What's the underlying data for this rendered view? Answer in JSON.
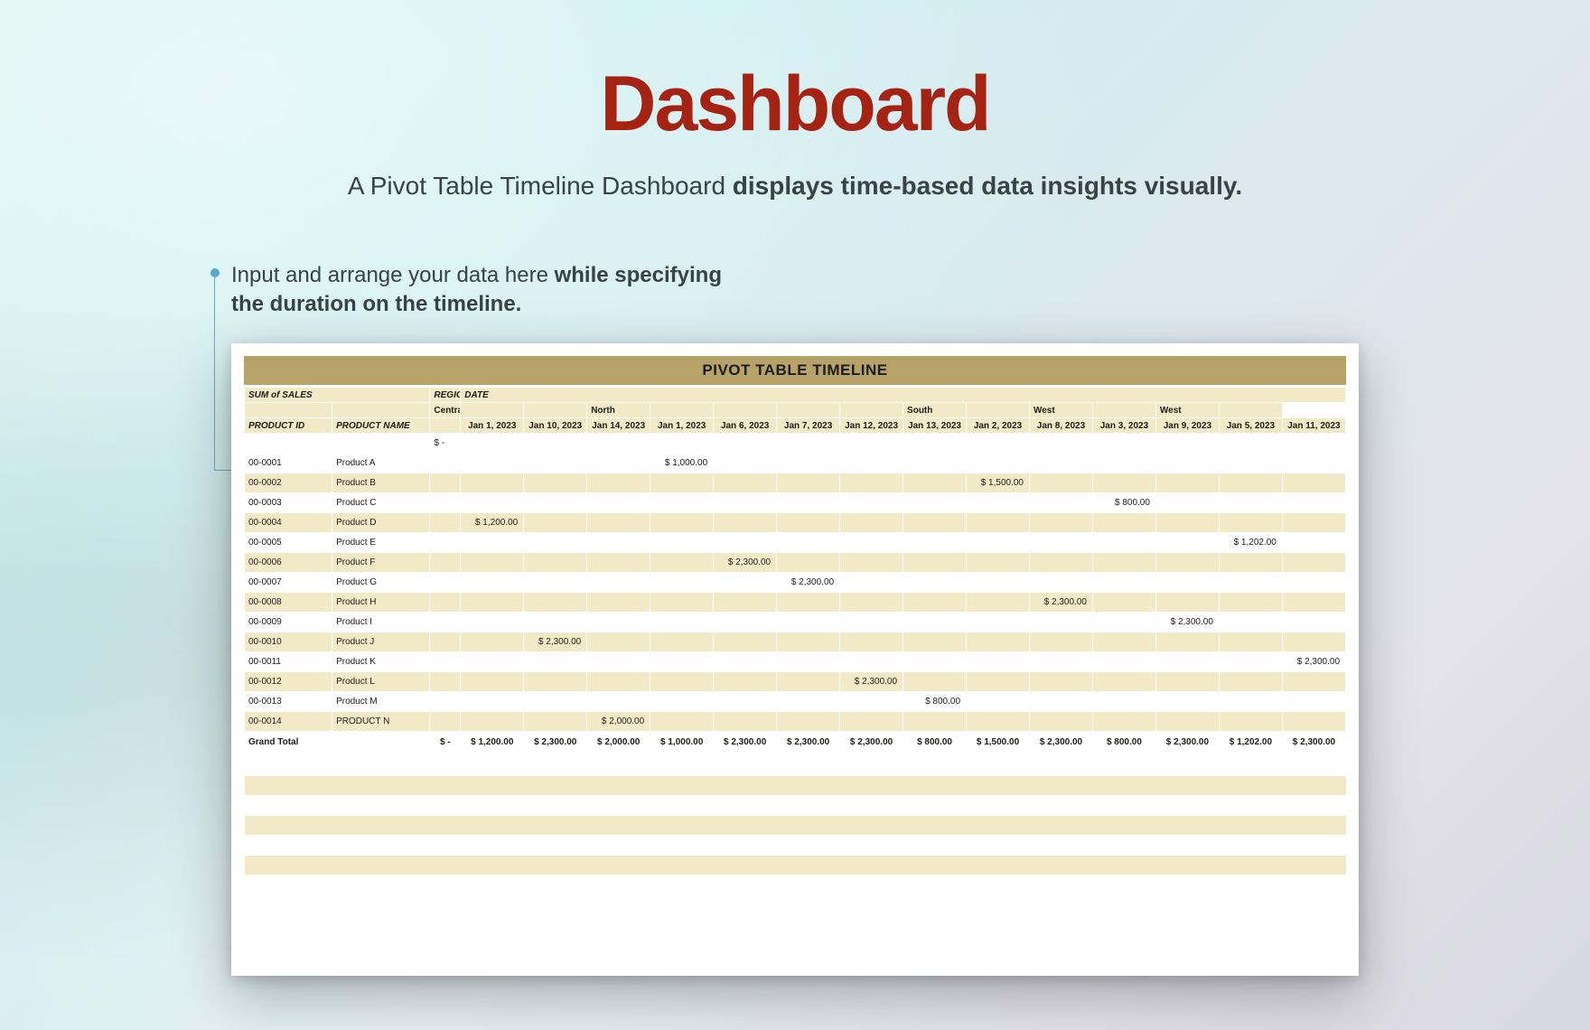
{
  "title": "Dashboard",
  "subtitle_prefix": "A Pivot Table Timeline Dashboard ",
  "subtitle_bold": "displays time-based data insights visually.",
  "callout_prefix": "Input and arrange your data here ",
  "callout_bold": "while specifying the duration on the timeline.",
  "banner": "PIVOT TABLE TIMELINE",
  "labels": {
    "sum_of_sales": "SUM of SALES",
    "region": "REGION",
    "date": "DATE",
    "product_id": "PRODUCT ID",
    "product_name": "PRODUCT NAME",
    "grand_total": "Grand Total"
  },
  "colors": {
    "title": "#a52312",
    "banner_bg": "#b7a36a",
    "header_bg": "#f2e9c6",
    "header_border": "#d9cfa3",
    "alt_row": "#f2e9c6",
    "text": "#1c1c1c"
  },
  "regions": [
    {
      "name": "Central",
      "span": 3
    },
    {
      "name": "North",
      "span": 5
    },
    {
      "name": "South",
      "span": 2
    },
    {
      "name": "West",
      "span": 2
    },
    {
      "name": "West",
      "span": 2
    }
  ],
  "date_cols": [
    "Jan 1, 2023",
    "Jan 10, 2023",
    "Jan 14, 2023",
    "Jan 1, 2023",
    "Jan 6, 2023",
    "Jan 7, 2023",
    "Jan 12, 2023",
    "Jan 13, 2023",
    "Jan 2, 2023",
    "Jan 8, 2023",
    "Jan 3, 2023",
    "Jan 9, 2023",
    "Jan 5, 2023",
    "Jan 11, 2023"
  ],
  "placeholder_dash": "$       -",
  "rows": [
    {
      "id": "00-0001",
      "name": "Product A",
      "vals": [
        "",
        "",
        "",
        "$   1,000.00",
        "",
        "",
        "",
        "",
        "",
        "",
        "",
        "",
        "",
        ""
      ]
    },
    {
      "id": "00-0002",
      "name": "Product B",
      "vals": [
        "",
        "",
        "",
        "",
        "",
        "",
        "",
        "",
        "$   1,500.00",
        "",
        "",
        "",
        "",
        ""
      ]
    },
    {
      "id": "00-0003",
      "name": "Product C",
      "vals": [
        "",
        "",
        "",
        "",
        "",
        "",
        "",
        "",
        "",
        "",
        "$    800.00",
        "",
        "",
        ""
      ]
    },
    {
      "id": "00-0004",
      "name": "Product D",
      "vals": [
        "$   1,200.00",
        "",
        "",
        "",
        "",
        "",
        "",
        "",
        "",
        "",
        "",
        "",
        "",
        ""
      ]
    },
    {
      "id": "00-0005",
      "name": "Product E",
      "vals": [
        "",
        "",
        "",
        "",
        "",
        "",
        "",
        "",
        "",
        "",
        "",
        "",
        "$   1,202.00",
        ""
      ]
    },
    {
      "id": "00-0006",
      "name": "Product F",
      "vals": [
        "",
        "",
        "",
        "",
        "$  2,300.00",
        "",
        "",
        "",
        "",
        "",
        "",
        "",
        "",
        ""
      ]
    },
    {
      "id": "00-0007",
      "name": "Product G",
      "vals": [
        "",
        "",
        "",
        "",
        "",
        "$  2,300.00",
        "",
        "",
        "",
        "",
        "",
        "",
        "",
        ""
      ]
    },
    {
      "id": "00-0008",
      "name": "Product H",
      "vals": [
        "",
        "",
        "",
        "",
        "",
        "",
        "",
        "",
        "",
        "$  2,300.00",
        "",
        "",
        "",
        ""
      ]
    },
    {
      "id": "00-0009",
      "name": "Product I",
      "vals": [
        "",
        "",
        "",
        "",
        "",
        "",
        "",
        "",
        "",
        "",
        "",
        "$  2,300.00",
        "",
        ""
      ]
    },
    {
      "id": "00-0010",
      "name": "Product J",
      "vals": [
        "",
        "$  2,300.00",
        "",
        "",
        "",
        "",
        "",
        "",
        "",
        "",
        "",
        "",
        "",
        ""
      ]
    },
    {
      "id": "00-0011",
      "name": "Product K",
      "vals": [
        "",
        "",
        "",
        "",
        "",
        "",
        "",
        "",
        "",
        "",
        "",
        "",
        "",
        "$  2,300.00"
      ]
    },
    {
      "id": "00-0012",
      "name": "Product L",
      "vals": [
        "",
        "",
        "",
        "",
        "",
        "",
        "$  2,300.00",
        "",
        "",
        "",
        "",
        "",
        "",
        ""
      ]
    },
    {
      "id": "00-0013",
      "name": "Product M",
      "vals": [
        "",
        "",
        "",
        "",
        "",
        "",
        "",
        "$    800.00",
        "",
        "",
        "",
        "",
        "",
        ""
      ]
    },
    {
      "id": "00-0014",
      "name": "PRODUCT N",
      "vals": [
        "",
        "",
        "$  2,000.00",
        "",
        "",
        "",
        "",
        "",
        "",
        "",
        "",
        "",
        "",
        ""
      ]
    }
  ],
  "grand_total": [
    "$       -",
    "$ 1,200.00",
    "$ 2,300.00",
    "$ 2,000.00",
    "$ 1,000.00",
    "$ 2,300.00",
    "$ 2,300.00",
    "$ 2,300.00",
    "$    800.00",
    "$ 1,500.00",
    "$ 2,300.00",
    "$    800.00",
    "$ 2,300.00",
    "$ 1,202.00",
    "$ 2,300.00"
  ],
  "empty_trailing_rows": 7
}
